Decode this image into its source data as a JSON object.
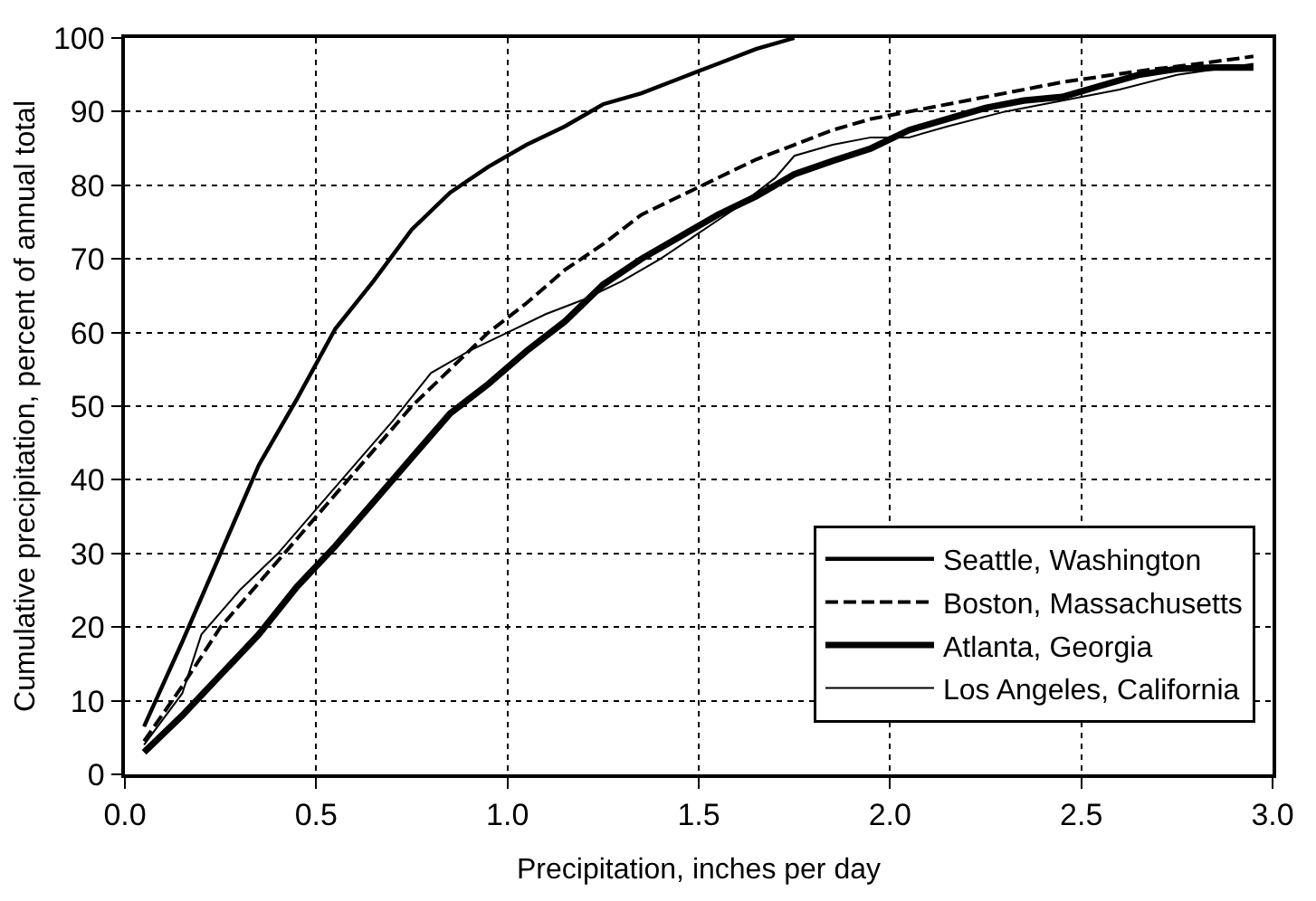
{
  "chart_data": {
    "type": "line",
    "xlabel": "Precipitation, inches per day",
    "ylabel": "Cumulative precipitation, percent of annual total",
    "xlim": [
      0,
      3
    ],
    "xticks": [
      {
        "value": 0,
        "label": "0.0"
      },
      {
        "value": 0.5,
        "label": "0.5"
      },
      {
        "value": 1,
        "label": "1.0"
      },
      {
        "value": 1.5,
        "label": "1.5"
      },
      {
        "value": 2,
        "label": "2.0"
      },
      {
        "value": 2.5,
        "label": "2.5"
      },
      {
        "value": 3,
        "label": "3.0"
      }
    ],
    "ylim": [
      0,
      100
    ],
    "yticks": [
      0,
      10,
      20,
      30,
      40,
      50,
      60,
      70,
      80,
      90,
      100
    ],
    "grid": true,
    "legend": "bottom right",
    "marker": "none",
    "series": [
      {
        "name": "Seattle, Washington",
        "color": "#000000",
        "line_style": "solid",
        "x": [
          0.05,
          0.15,
          0.25,
          0.35,
          0.45,
          0.55,
          0.65,
          0.75,
          0.85,
          0.95,
          1.05,
          1.15,
          1.25,
          1.35,
          1.45,
          1.55,
          1.65,
          1.75
        ],
        "values": [
          6.5,
          18,
          30,
          42,
          51,
          60.5,
          67,
          74,
          79,
          82.5,
          85.5,
          88,
          91,
          92.5,
          94.5,
          96.5,
          98.5,
          100
        ]
      },
      {
        "name": "Boston, Massachusetts",
        "color": "#000000",
        "line_style": "dashed",
        "x": [
          0.05,
          0.15,
          0.25,
          0.35,
          0.45,
          0.55,
          0.65,
          0.75,
          0.85,
          0.95,
          1.05,
          1.15,
          1.25,
          1.35,
          1.45,
          1.55,
          1.65,
          1.75,
          1.85,
          1.95,
          2.05,
          2.25,
          2.45,
          2.65,
          2.85,
          2.95
        ],
        "values": [
          4.5,
          12,
          20,
          26,
          32,
          38,
          44,
          50,
          55,
          60,
          64,
          68.5,
          72,
          76,
          78.5,
          81,
          83.5,
          85.5,
          87.5,
          89,
          90,
          92,
          94,
          95.5,
          96.8,
          97.5
        ]
      },
      {
        "name": "Atlanta, Georgia",
        "color": "#000000",
        "line_style": "solid",
        "x": [
          0.05,
          0.15,
          0.25,
          0.35,
          0.45,
          0.55,
          0.65,
          0.75,
          0.85,
          0.95,
          1.05,
          1.15,
          1.25,
          1.35,
          1.45,
          1.55,
          1.65,
          1.75,
          1.85,
          1.95,
          2.05,
          2.15,
          2.25,
          2.35,
          2.45,
          2.55,
          2.65,
          2.75,
          2.85,
          2.95
        ],
        "values": [
          3,
          8,
          13.5,
          19,
          25.5,
          31,
          37,
          43,
          49,
          53,
          57.5,
          61.5,
          66.5,
          70,
          73,
          76,
          78.5,
          81.5,
          83.3,
          85,
          87.5,
          89,
          90.5,
          91.5,
          92,
          93.5,
          95,
          95.8,
          96,
          96
        ]
      },
      {
        "name": "Los Angeles, California",
        "color": "#000000",
        "line_style": "solid",
        "x": [
          0.05,
          0.15,
          0.2,
          0.3,
          0.4,
          0.5,
          0.6,
          0.7,
          0.8,
          0.9,
          1.0,
          1.1,
          1.2,
          1.3,
          1.4,
          1.5,
          1.6,
          1.7,
          1.75,
          1.85,
          1.95,
          2.05,
          2.15,
          2.3,
          2.45,
          2.6,
          2.75,
          2.95
        ],
        "values": [
          4,
          11,
          19,
          25,
          30,
          36,
          42,
          48,
          54.5,
          57.5,
          60,
          62.5,
          64.5,
          67,
          70,
          73.5,
          77,
          81,
          84,
          85.5,
          86.5,
          86.5,
          88,
          90,
          91.5,
          93,
          95,
          96.5
        ]
      }
    ]
  }
}
